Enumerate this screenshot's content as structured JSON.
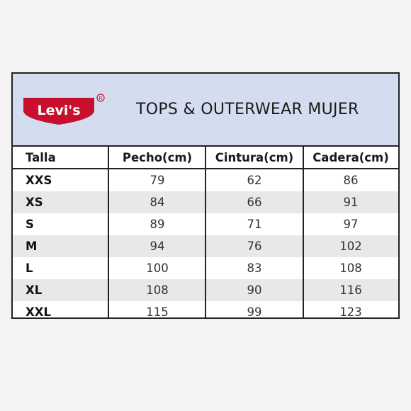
{
  "brand": {
    "logo_text": "Levi's",
    "registered_mark": "®",
    "logo_color": "#c8102e"
  },
  "banner": {
    "title": "TOPS & OUTERWEAR MUJER",
    "background": "#d4dcf0"
  },
  "table": {
    "headers": [
      "Talla",
      "Pecho(cm)",
      "Cintura(cm)",
      "Cadera(cm)"
    ],
    "rows": [
      [
        "XXS",
        "79",
        "62",
        "86"
      ],
      [
        "XS",
        "84",
        "66",
        "91"
      ],
      [
        "S",
        "89",
        "71",
        "97"
      ],
      [
        "M",
        "94",
        "76",
        "102"
      ],
      [
        "L",
        "100",
        "83",
        "108"
      ],
      [
        "XL",
        "108",
        "90",
        "116"
      ],
      [
        "XXL",
        "115",
        "99",
        "123"
      ]
    ]
  }
}
